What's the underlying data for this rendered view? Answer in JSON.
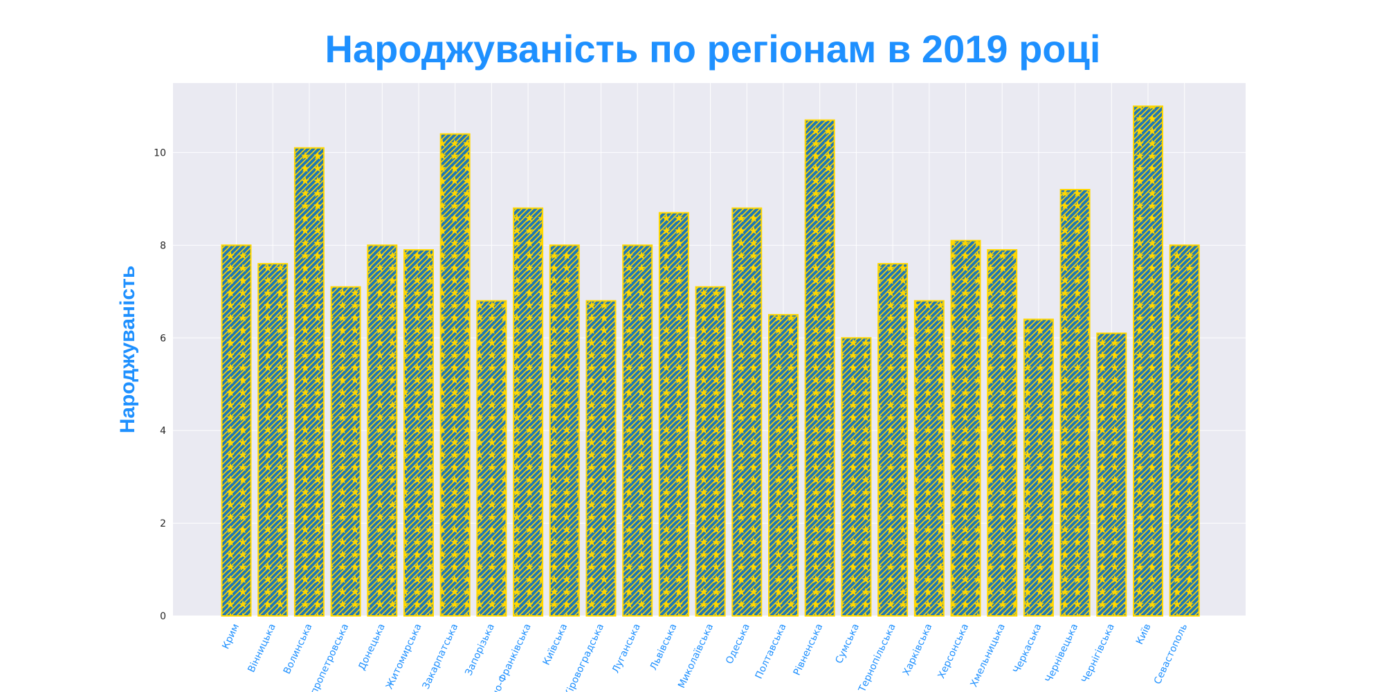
{
  "chart_data": {
    "type": "bar",
    "title": "Народжуваність по регіонам в 2019 році",
    "xlabel": "",
    "ylabel": "Народжуваність",
    "ylim": [
      0,
      11.5
    ],
    "yticks": [
      0,
      2,
      4,
      6,
      8,
      10
    ],
    "grid": true,
    "colors": {
      "bar_fill": "#1f77b4",
      "bar_edge": "#ffd700",
      "hatch": "#ffd700",
      "background": "#eaeaf2",
      "title": "#1e90ff",
      "tick_labels_x": "#1e90ff"
    },
    "categories": [
      "Крим",
      "Вінницька",
      "Волинська",
      "Дніпропетровська",
      "Донецька",
      "Житомирська",
      "Закарпатська",
      "Запорізька",
      "Івано-Франківська",
      "Київська",
      "Кіровоградська",
      "Луганська",
      "Львівська",
      "Миколаївська",
      "Одеська",
      "Полтавська",
      "Рівненська",
      "Сумська",
      "Тернопільська",
      "Харківська",
      "Херсонська",
      "Хмельницька",
      "Черкаська",
      "Чернівецька",
      "Чернігівська",
      "Київ",
      "Севастополь"
    ],
    "values": [
      8.0,
      7.6,
      10.1,
      7.1,
      8.0,
      7.9,
      10.4,
      6.8,
      8.8,
      8.0,
      6.8,
      8.0,
      8.7,
      7.1,
      8.8,
      6.5,
      10.7,
      6.0,
      7.6,
      6.8,
      8.1,
      7.9,
      6.4,
      9.2,
      6.1,
      11.0,
      8.0
    ]
  }
}
